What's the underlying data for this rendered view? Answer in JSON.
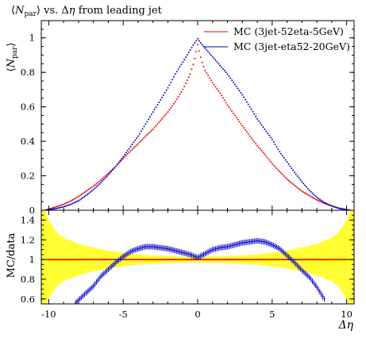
{
  "chart_data": [
    {
      "type": "scatter",
      "title": "⟨N_par⟩ vs. Δη from leading jet",
      "title_parts": {
        "open": "⟨",
        "sym": "N",
        "sub": "par",
        "close": "⟩",
        "rest": " vs. Δ",
        "eta": "η",
        "tail": " from leading jet"
      },
      "ylabel": "⟨N_par⟩",
      "ylabel_parts": {
        "open": "⟨",
        "sym": "N",
        "sub": "par",
        "close": "⟩"
      },
      "xlim": [
        -10.5,
        10.5
      ],
      "ylim": [
        0,
        1.1
      ],
      "y_ticks": [
        0,
        0.2,
        0.4,
        0.6,
        0.8,
        1
      ],
      "y_tick_labels": [
        "0",
        "0.2",
        "0.4",
        "0.6",
        "0.8",
        "1"
      ],
      "legend_position": "top-right",
      "series": [
        {
          "name": "MC (3jet-52eta-5GeV)",
          "color": "#e00000",
          "x": [
            -10.25,
            -9.5,
            -9,
            -8.5,
            -8,
            -7.5,
            -7,
            -6.5,
            -6,
            -5.5,
            -5,
            -4.5,
            -4,
            -3.5,
            -3,
            -2.5,
            -2,
            -1.5,
            -1,
            -0.5,
            -0.25,
            0,
            0.25,
            0.5,
            1,
            1.5,
            2,
            2.5,
            3,
            3.5,
            4,
            4.5,
            5,
            5.5,
            6,
            6.5,
            7,
            7.5,
            8,
            8.5,
            9,
            9.5,
            10.25
          ],
          "y": [
            0.0,
            0.02,
            0.035,
            0.055,
            0.08,
            0.11,
            0.14,
            0.175,
            0.215,
            0.255,
            0.3,
            0.345,
            0.385,
            0.43,
            0.47,
            0.52,
            0.57,
            0.63,
            0.7,
            0.79,
            0.86,
            0.96,
            0.87,
            0.81,
            0.74,
            0.68,
            0.61,
            0.55,
            0.49,
            0.43,
            0.375,
            0.325,
            0.27,
            0.225,
            0.18,
            0.145,
            0.11,
            0.085,
            0.06,
            0.04,
            0.025,
            0.012,
            0.0
          ]
        },
        {
          "name": "MC (3jet-eta52-20GeV)",
          "color": "#0000cc",
          "x": [
            -10.25,
            -9.5,
            -9,
            -8.5,
            -8,
            -7.5,
            -7,
            -6.5,
            -6,
            -5.5,
            -5,
            -4.5,
            -4,
            -3.5,
            -3,
            -2.5,
            -2,
            -1.5,
            -1,
            -0.5,
            -0.25,
            0,
            0.25,
            0.5,
            1,
            1.5,
            2,
            2.5,
            3,
            3.5,
            4,
            4.5,
            5,
            5.5,
            6,
            6.5,
            7,
            7.5,
            8,
            8.5,
            9,
            9.5,
            10.25
          ],
          "y": [
            0.0,
            0.01,
            0.02,
            0.035,
            0.055,
            0.085,
            0.12,
            0.16,
            0.205,
            0.255,
            0.31,
            0.37,
            0.43,
            0.5,
            0.57,
            0.64,
            0.71,
            0.79,
            0.86,
            0.93,
            0.965,
            0.995,
            0.965,
            0.94,
            0.89,
            0.84,
            0.79,
            0.73,
            0.67,
            0.6,
            0.53,
            0.47,
            0.41,
            0.34,
            0.28,
            0.22,
            0.165,
            0.115,
            0.075,
            0.045,
            0.025,
            0.01,
            0.0
          ]
        }
      ]
    },
    {
      "type": "scatter",
      "ylabel": "MC/data",
      "xlabel": "Δη",
      "xlim": [
        -10.5,
        10.5
      ],
      "ylim": [
        0.55,
        1.5
      ],
      "x_ticks": [
        -10,
        -5,
        0,
        5,
        10
      ],
      "x_tick_labels": [
        "-10",
        "-5",
        "0",
        "5",
        "10"
      ],
      "y_ticks": [
        0.6,
        0.8,
        1,
        1.2,
        1.4
      ],
      "y_tick_labels": [
        "0.6",
        "0.8",
        "1",
        "1.2",
        "1.4"
      ],
      "reference_line": 1,
      "uncertainty_band": {
        "color": "#ffff33",
        "x": [
          -10.5,
          -10,
          -9.5,
          -9,
          -8,
          -7,
          -6,
          -5,
          -4,
          -2,
          0,
          2,
          4,
          5,
          6,
          7,
          8,
          9,
          9.5,
          10,
          10.5
        ],
        "half_width": [
          0.6,
          0.4,
          0.28,
          0.22,
          0.16,
          0.12,
          0.09,
          0.07,
          0.05,
          0.035,
          0.03,
          0.035,
          0.05,
          0.07,
          0.09,
          0.12,
          0.16,
          0.22,
          0.28,
          0.4,
          0.6
        ]
      },
      "series": [
        {
          "name": "MC (3jet-52eta-5GeV)",
          "color": "#e00000",
          "x": [
            -10,
            -9,
            -8,
            -7,
            -6,
            -5,
            -4,
            -3,
            -2,
            -1,
            0,
            1,
            2,
            3,
            4,
            5,
            6,
            7,
            8,
            9,
            10
          ],
          "y": [
            1,
            1,
            1,
            1,
            1,
            1,
            1,
            1,
            1,
            1,
            1,
            1,
            1,
            1,
            1,
            1,
            1,
            1,
            1,
            1,
            1
          ]
        },
        {
          "name": "MC (3jet-eta52-20GeV)",
          "color": "#0000cc",
          "x": [
            -8.2,
            -7.5,
            -7,
            -6.5,
            -6,
            -5.5,
            -5,
            -4.5,
            -4,
            -3.5,
            -3,
            -2.5,
            -2,
            -1.5,
            -1,
            -0.5,
            0,
            0.5,
            1,
            1.5,
            2,
            2.5,
            3,
            3.5,
            4,
            4.5,
            5,
            5.5,
            6,
            6.5,
            7,
            7.5,
            8,
            8.5
          ],
          "y": [
            0.56,
            0.66,
            0.73,
            0.83,
            0.9,
            0.97,
            1.03,
            1.08,
            1.11,
            1.13,
            1.13,
            1.12,
            1.11,
            1.09,
            1.07,
            1.05,
            1.02,
            1.06,
            1.1,
            1.12,
            1.13,
            1.15,
            1.17,
            1.18,
            1.19,
            1.18,
            1.15,
            1.11,
            1.04,
            0.97,
            0.89,
            0.82,
            0.72,
            0.6
          ]
        }
      ]
    }
  ]
}
